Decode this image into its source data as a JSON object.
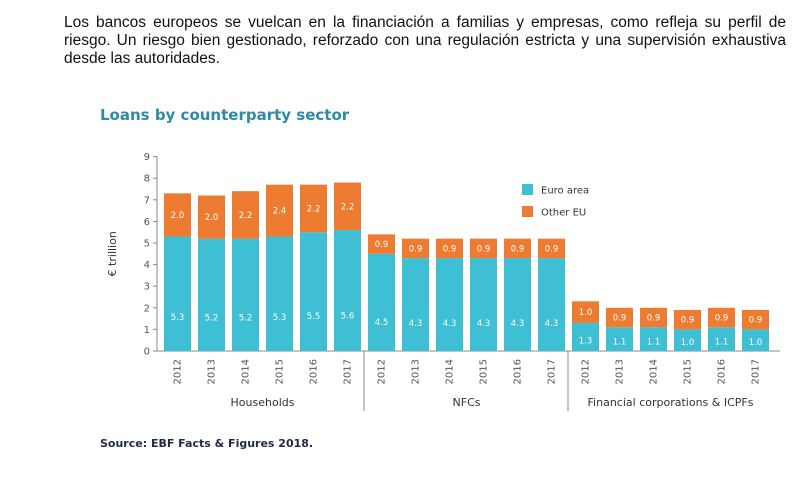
{
  "intro_text": "Los bancos europeos se vuelcan en la financiación a familias y empresas, como refleja su perfil de riesgo. Un riesgo bien gestionado, reforzado con una regulación estricta y una supervisión exhaustiva desde las autoridades.",
  "chart_data": {
    "type": "bar",
    "stacked": true,
    "title": "Loans by counterparty sector",
    "ylabel": "€ trillion",
    "ylim": [
      0,
      9
    ],
    "yticks": [
      0,
      1,
      2,
      3,
      4,
      5,
      6,
      7,
      8,
      9
    ],
    "grid": false,
    "legend_position": "top-right",
    "source": "Source: EBF Facts & Figures 2018.",
    "groups": [
      {
        "name": "Households",
        "categories": [
          "2012",
          "2013",
          "2014",
          "2015",
          "2016",
          "2017"
        ]
      },
      {
        "name": "NFCs",
        "categories": [
          "2012",
          "2013",
          "2014",
          "2015",
          "2016",
          "2017"
        ]
      },
      {
        "name": "Financial corporations & ICPFs",
        "categories": [
          "2012",
          "2013",
          "2014",
          "2015",
          "2016",
          "2017"
        ]
      }
    ],
    "series": [
      {
        "name": "Euro area",
        "color": "#3fbfd3",
        "labels": [
          "5.3",
          "5.2",
          "5.2",
          "5.3",
          "5.5",
          "5.6",
          "4.5",
          "4.3",
          "4.3",
          "4.3",
          "4.3",
          "4.3",
          "1.3",
          "1.1",
          "1.1",
          "1.0",
          "1.1",
          "1.0"
        ],
        "values": [
          5.3,
          5.2,
          5.2,
          5.3,
          5.5,
          5.6,
          4.5,
          4.3,
          4.3,
          4.3,
          4.3,
          4.3,
          1.3,
          1.1,
          1.1,
          1.0,
          1.1,
          1.0
        ]
      },
      {
        "name": "Other EU",
        "color": "#ed7b31",
        "labels": [
          "2.0",
          "2.0",
          "2.2",
          "2.4",
          "2.2",
          "2.2",
          "0.9",
          "0.9",
          "0.9",
          "0.9",
          "0.9",
          "0.9",
          "1.0",
          "0.9",
          "0.9",
          "0.9",
          "0.9",
          "0.9"
        ],
        "values": [
          2.0,
          2.0,
          2.2,
          2.4,
          2.2,
          2.2,
          0.9,
          0.9,
          0.9,
          0.9,
          0.9,
          0.9,
          1.0,
          0.9,
          0.9,
          0.9,
          0.9,
          0.9
        ]
      }
    ]
  }
}
